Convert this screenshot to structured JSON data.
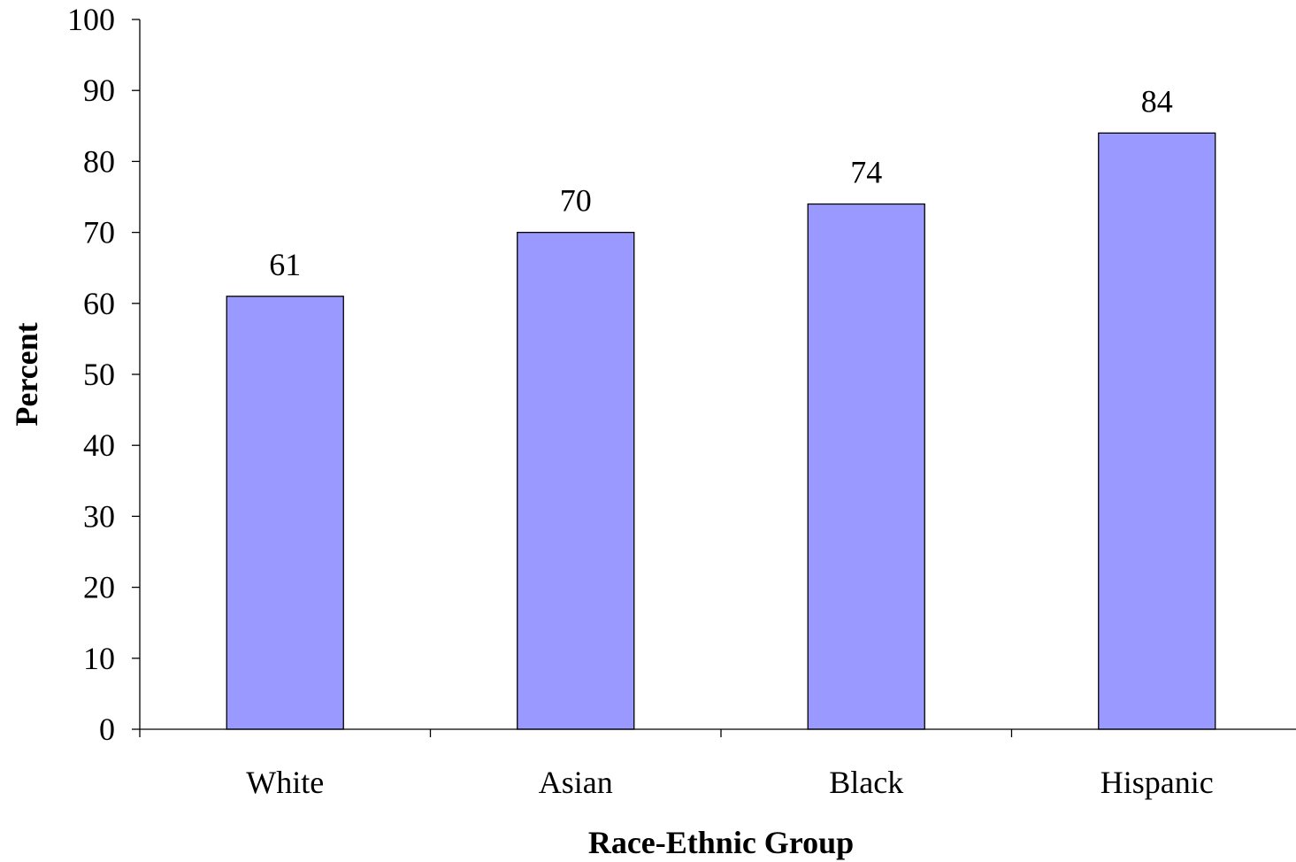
{
  "chart_data": {
    "type": "bar",
    "categories": [
      "White",
      "Asian",
      "Black",
      "Hispanic"
    ],
    "values": [
      61,
      70,
      74,
      84
    ],
    "data_labels": [
      "61",
      "70",
      "74",
      "84"
    ],
    "title": "",
    "xlabel": "Race-Ethnic Group",
    "ylabel": "Percent",
    "ylim": [
      0,
      100
    ],
    "yticks": [
      0,
      10,
      20,
      30,
      40,
      50,
      60,
      70,
      80,
      90,
      100
    ],
    "grid": false,
    "legend": "none",
    "bar_color": "#9999ff",
    "bar_edge_color": "#000000"
  }
}
